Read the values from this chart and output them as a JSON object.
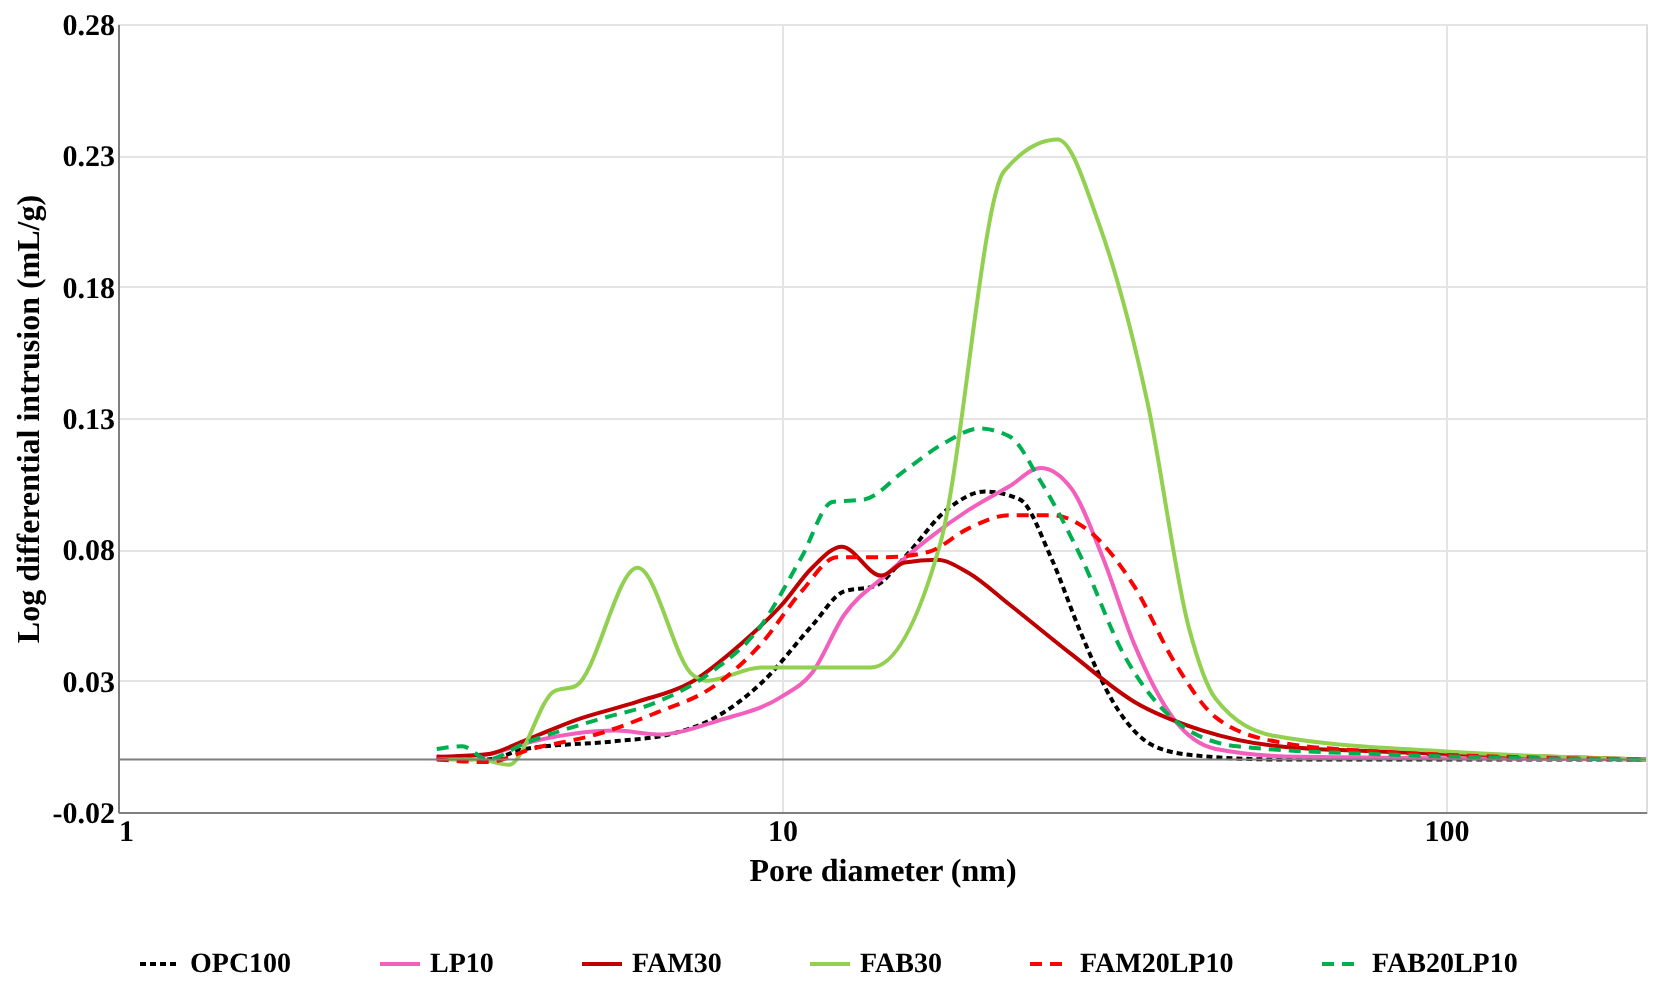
{
  "chart_data": {
    "type": "line",
    "xlabel": "Pore diameter (nm)",
    "ylabel": "Log differential intrusion (mL/g)",
    "xlim": [
      1,
      200
    ],
    "xticks": [
      1,
      10,
      100
    ],
    "ylim": [
      -0.02,
      0.28
    ],
    "yticks": [
      -0.02,
      0.03,
      0.08,
      0.13,
      0.18,
      0.23,
      0.28
    ],
    "log": "x",
    "grid": true,
    "legend": "bottom",
    "marker": "none",
    "ref_lines": [
      {
        "axis": "y",
        "value": 0,
        "label": null,
        "color": "#7f7f7f"
      }
    ],
    "series": [
      {
        "name": "OPC100",
        "color": "#000000",
        "line_style": "dotted",
        "x": [
          3.02,
          3.6,
          4.1,
          5.63,
          6.75,
          7.8,
          9.3,
          11.1,
          12.4,
          13.8,
          15.3,
          17.7,
          20.2,
          22.8,
          25.4,
          28.2,
          31.5,
          36.4,
          42,
          56,
          100,
          200
        ],
        "values": [
          0.001,
          0,
          0.004,
          0.007,
          0.0095,
          0.015,
          0.029,
          0.051,
          0.064,
          0.066,
          0.077,
          0.095,
          0.102,
          0.099,
          0.077,
          0.048,
          0.022,
          0.005,
          0.0015,
          0,
          0,
          0
        ]
      },
      {
        "name": "LP10",
        "color": "#f25fbd",
        "line_style": "solid",
        "x": [
          3.02,
          3.6,
          4.08,
          5.63,
          6.5,
          8.06,
          10,
          11.1,
          12.4,
          14.3,
          16.6,
          19.1,
          22,
          24.5,
          27.3,
          30.4,
          33.9,
          39,
          45,
          60,
          100,
          200
        ],
        "values": [
          0.001,
          0.002,
          0.006,
          0.011,
          0.0095,
          0.015,
          0.024,
          0.033,
          0.055,
          0.07,
          0.084,
          0.095,
          0.104,
          0.111,
          0.103,
          0.077,
          0.044,
          0.015,
          0.004,
          0.001,
          0.0005,
          0
        ]
      },
      {
        "name": "FAM30",
        "color": "#c00000",
        "line_style": "solid",
        "x": [
          3.02,
          3.6,
          4.08,
          4.89,
          6.06,
          7.25,
          8.67,
          10,
          11.1,
          12.3,
          14.1,
          15.3,
          17.1,
          19.1,
          22,
          27.3,
          33.9,
          43,
          56,
          79,
          123,
          200
        ],
        "values": [
          0.001,
          0.002,
          0.007,
          0.015,
          0.022,
          0.029,
          0.044,
          0.059,
          0.073,
          0.081,
          0.07,
          0.075,
          0.076,
          0.071,
          0.059,
          0.04,
          0.022,
          0.011,
          0.005,
          0.003,
          0.0015,
          0
        ]
      },
      {
        "name": "FAB30",
        "color": "#92d050",
        "line_style": "solid",
        "x": [
          3.02,
          3.5,
          3.88,
          4.54,
          4.89,
          6.06,
          7.35,
          7.7,
          9.3,
          12.4,
          13.6,
          17.3,
          21.6,
          26,
          30,
          35.5,
          41,
          45,
          55,
          100,
          200
        ],
        "values": [
          0,
          0,
          -0.002,
          0.026,
          0.028,
          0.073,
          0.032,
          0.03,
          0.035,
          0.035,
          0.035,
          0.082,
          0.224,
          0.236,
          0.204,
          0.136,
          0.05,
          0.023,
          0.009,
          0.003,
          0
        ]
      },
      {
        "name": "FAM20LP10",
        "color": "#ff0000",
        "line_style": "dashed",
        "x": [
          3.02,
          3.6,
          4.2,
          5.25,
          6.5,
          7.8,
          9.3,
          10.7,
          12.1,
          14.3,
          16.6,
          19.1,
          22,
          25.4,
          29.3,
          33.9,
          39,
          45,
          56,
          79,
          200
        ],
        "values": [
          0,
          -0.001,
          0.004,
          0.0095,
          0.018,
          0.027,
          0.044,
          0.064,
          0.077,
          0.077,
          0.079,
          0.088,
          0.093,
          0.093,
          0.086,
          0.066,
          0.037,
          0.016,
          0.0066,
          0.003,
          0
        ]
      },
      {
        "name": "FAB20LP10",
        "color": "#00b050",
        "line_style": "dashed",
        "x": [
          3.02,
          3.3,
          3.6,
          4.08,
          5.25,
          6.5,
          7.8,
          9.3,
          10.7,
          11.9,
          13.3,
          15.3,
          17.7,
          19.8,
          22,
          24.5,
          28.2,
          32.7,
          39,
          48.5,
          79,
          200
        ],
        "values": [
          0.004,
          0.005,
          0,
          0.006,
          0.015,
          0.022,
          0.033,
          0.051,
          0.077,
          0.098,
          0.099,
          0.11,
          0.121,
          0.126,
          0.123,
          0.106,
          0.077,
          0.04,
          0.015,
          0.005,
          0.002,
          0
        ]
      }
    ]
  }
}
